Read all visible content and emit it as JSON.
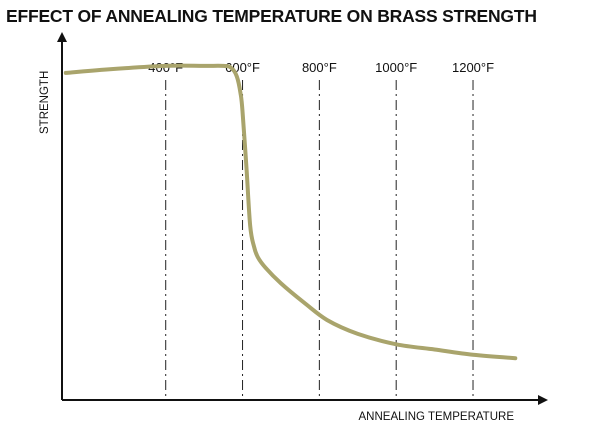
{
  "chart_data": {
    "type": "line",
    "title": "EFFECT OF ANNEALING TEMPERATURE ON BRASS STRENGTH",
    "xlabel": "ANNEALING TEMPERATURE",
    "ylabel": "STRENGTH",
    "x_ticks": [
      "400°F",
      "600°F",
      "800°F",
      "1000°F",
      "1200°F"
    ],
    "x_tick_values": [
      400,
      600,
      800,
      1000,
      1200
    ],
    "xlim": [
      130,
      1390
    ],
    "ylim": [
      0,
      100
    ],
    "grid": "vertical dash-dot lines at tick values",
    "series": [
      {
        "color": "#a9a46c",
        "x": [
          140,
          250,
          400,
          500,
          550,
          570,
          585,
          595,
          600,
          610,
          620,
          630,
          640,
          660,
          700,
          760,
          820,
          900,
          1000,
          1100,
          1200,
          1310
        ],
        "y": [
          94,
          95,
          96,
          96,
          96,
          95.5,
          93,
          88,
          83,
          67,
          50,
          44,
          41,
          38,
          33.5,
          28,
          23,
          19,
          16,
          14.5,
          13,
          12
        ]
      }
    ]
  }
}
